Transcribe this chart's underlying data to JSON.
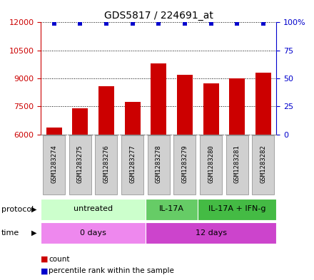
{
  "title": "GDS5817 / 224691_at",
  "samples": [
    "GSM1283274",
    "GSM1283275",
    "GSM1283276",
    "GSM1283277",
    "GSM1283278",
    "GSM1283279",
    "GSM1283280",
    "GSM1283281",
    "GSM1283282"
  ],
  "bar_values": [
    6350,
    7400,
    8600,
    7750,
    9800,
    9200,
    8750,
    9000,
    9300
  ],
  "percentile_values": [
    99,
    99,
    99,
    99,
    99,
    99,
    99,
    99,
    99
  ],
  "bar_color": "#cc0000",
  "percentile_color": "#0000cc",
  "ylim_left": [
    6000,
    12000
  ],
  "ylim_right": [
    0,
    100
  ],
  "yticks_left": [
    6000,
    7500,
    9000,
    10500,
    12000
  ],
  "yticks_right": [
    0,
    25,
    50,
    75,
    100
  ],
  "left_tick_color": "#cc0000",
  "right_tick_color": "#0000cc",
  "protocol_groups": [
    {
      "label": "untreated",
      "start": 0,
      "end": 4,
      "color": "#ccffcc"
    },
    {
      "label": "IL-17A",
      "start": 4,
      "end": 6,
      "color": "#66cc66"
    },
    {
      "label": "IL-17A + IFN-g",
      "start": 6,
      "end": 9,
      "color": "#44bb44"
    }
  ],
  "time_groups": [
    {
      "label": "0 days",
      "start": 0,
      "end": 4,
      "color": "#ee88ee"
    },
    {
      "label": "12 days",
      "start": 4,
      "end": 9,
      "color": "#cc44cc"
    }
  ],
  "protocol_label": "protocol",
  "time_label": "time",
  "legend_count_label": "count",
  "legend_percentile_label": "percentile rank within the sample",
  "background_color": "#ffffff",
  "grid_color": "#000000",
  "sample_box_color": "#d0d0d0",
  "sample_box_edge_color": "#888888"
}
